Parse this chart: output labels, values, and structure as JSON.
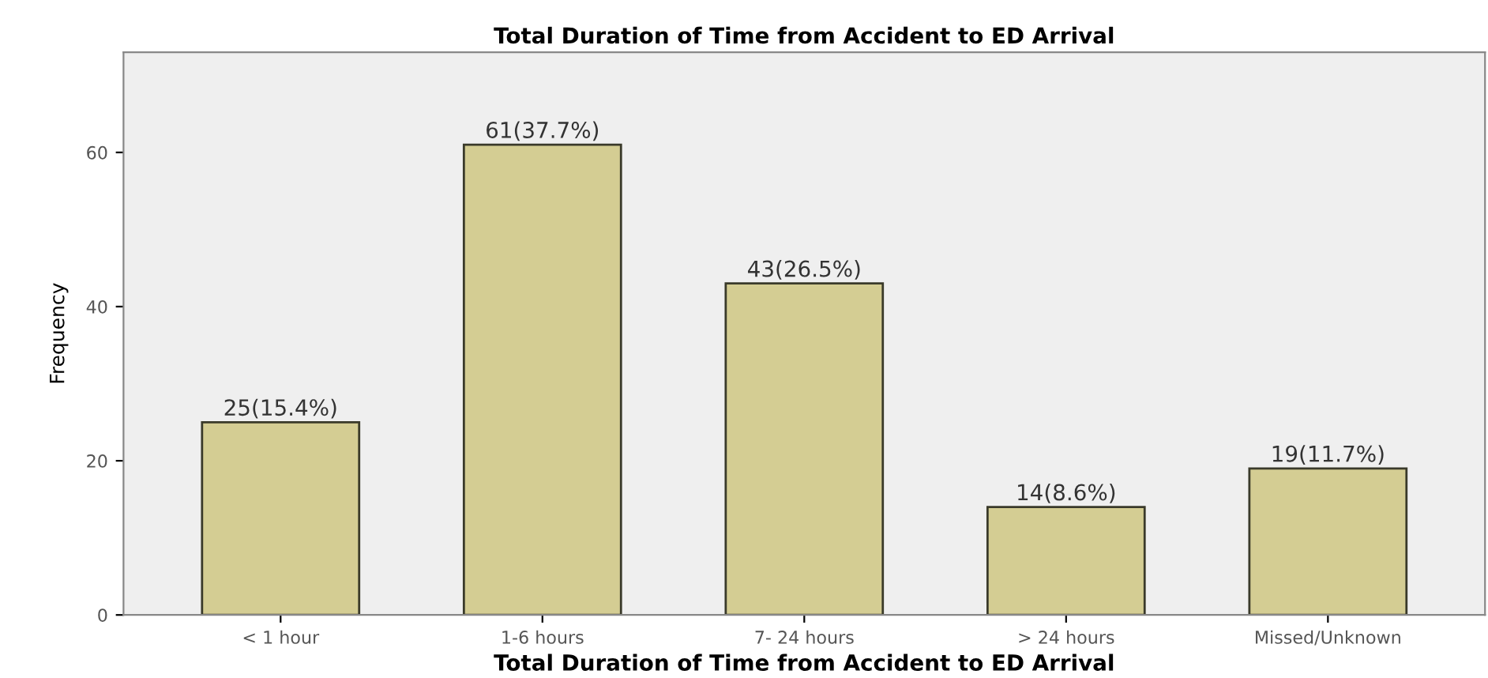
{
  "chart_data": {
    "type": "bar",
    "title": "Total Duration of Time from Accident to ED Arrival",
    "xlabel": "Total Duration of Time from Accident to ED Arrival",
    "ylabel": "Frequency",
    "categories": [
      "< 1 hour",
      "1-6 hours",
      "7- 24 hours",
      "> 24 hours",
      "Missed/Unknown"
    ],
    "values": [
      25,
      61,
      43,
      14,
      19
    ],
    "value_labels": [
      "25(15.4%)",
      "61(37.7%)",
      "43(26.5%)",
      "14(8.6%)",
      "19(11.7%)"
    ],
    "color": "#d4cd93",
    "ylim": [
      0,
      73
    ],
    "yticks": [
      0,
      20,
      40,
      60
    ],
    "grid": false,
    "legend": false
  }
}
